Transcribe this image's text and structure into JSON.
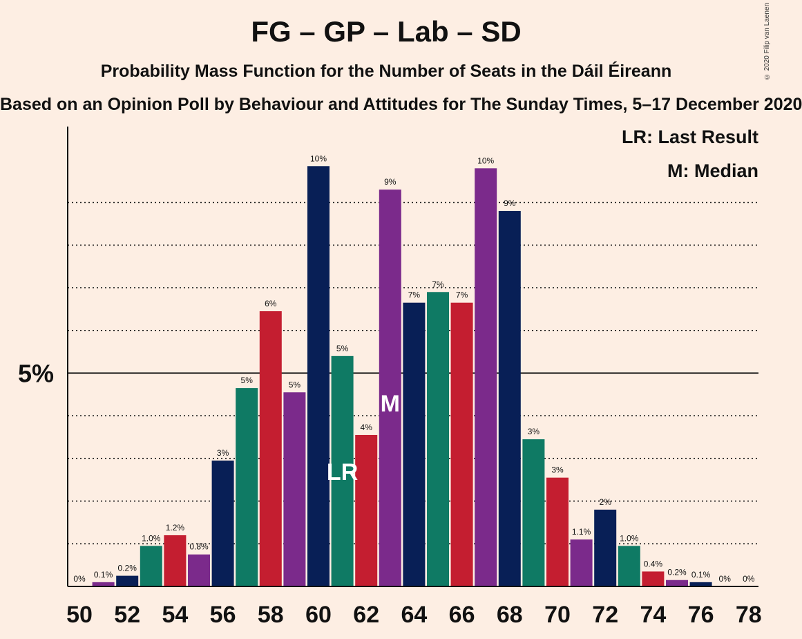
{
  "chart_data": {
    "type": "bar",
    "title": "FG – GP – Lab – SD",
    "subtitle": "Probability Mass Function for the Number of Seats in the Dáil Éireann",
    "source": "Based on an Opinion Poll by Behaviour and Attitudes for The Sunday Times, 5–17 December 2020",
    "copyright": "© 2020 Filip van Laenen",
    "ylabel_5": "5%",
    "legend": [
      "LR: Last Result",
      "M: Median"
    ],
    "last_result_seat": 61,
    "last_result_label": "LR",
    "median_seat": 63,
    "median_label": "M",
    "ylim": [
      0,
      10.5
    ],
    "party_colors": [
      "#0f7a64",
      "#c41e30",
      "#7b2a8b",
      "#081f56"
    ],
    "x_ticks": [
      50,
      52,
      54,
      56,
      58,
      60,
      62,
      64,
      66,
      68,
      70,
      72,
      74,
      76,
      78
    ],
    "seats": [
      50,
      51,
      52,
      53,
      54,
      55,
      56,
      57,
      58,
      59,
      60,
      61,
      62,
      63,
      64,
      65,
      66,
      67,
      68,
      69,
      70,
      71,
      72,
      73,
      74,
      75,
      76,
      77,
      78
    ],
    "values": [
      0,
      0.1,
      0.25,
      0.95,
      1.2,
      0.75,
      2.95,
      4.65,
      6.45,
      4.55,
      9.85,
      5.4,
      3.55,
      9.3,
      6.65,
      6.9,
      6.65,
      9.8,
      8.8,
      3.45,
      2.55,
      1.1,
      1.8,
      0.95,
      0.35,
      0.15,
      0.1,
      0,
      0
    ],
    "labels": [
      "0%",
      "0.1%",
      "0.2%",
      "1.0%",
      "1.2%",
      "0.8%",
      "3%",
      "5%",
      "6%",
      "5%",
      "10%",
      "5%",
      "4%",
      "9%",
      "7%",
      "7%",
      "7%",
      "10%",
      "9%",
      "3%",
      "3%",
      "1.1%",
      "2%",
      "1.0%",
      "0.4%",
      "0.2%",
      "0.1%",
      "0%",
      "0%"
    ],
    "colors": [
      "#0f7a64",
      "#7b2a8b",
      "#081f56",
      "#0f7a64",
      "#c41e30",
      "#7b2a8b",
      "#081f56",
      "#0f7a64",
      "#c41e30",
      "#7b2a8b",
      "#081f56",
      "#0f7a64",
      "#c41e30",
      "#7b2a8b",
      "#081f56",
      "#0f7a64",
      "#c41e30",
      "#7b2a8b",
      "#081f56",
      "#0f7a64",
      "#c41e30",
      "#7b2a8b",
      "#081f56",
      "#0f7a64",
      "#c41e30",
      "#7b2a8b",
      "#081f56",
      "#0f7a64",
      "#c41e30"
    ]
  }
}
